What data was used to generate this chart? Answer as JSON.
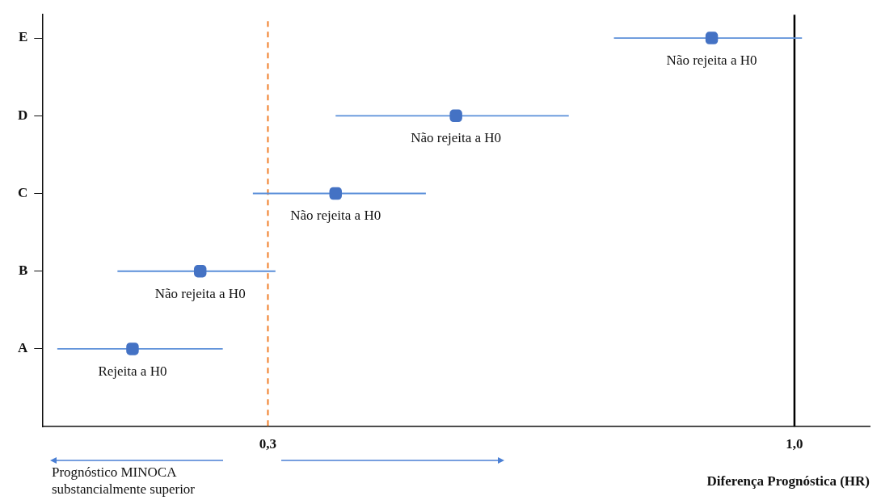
{
  "chart_data": {
    "type": "scatter",
    "orientation": "horizontal",
    "categories": [
      "E",
      "D",
      "C",
      "B",
      "A"
    ],
    "xlabel": "Diferença Prognóstica (HR)",
    "xlim": [
      0,
      1.1
    ],
    "xticks": [
      {
        "value": 0.3,
        "label": "0,3"
      },
      {
        "value": 1.0,
        "label": "1,0"
      }
    ],
    "series": [
      {
        "color": "#4472c4",
        "values": [
          0.89,
          0.55,
          0.39,
          0.21,
          0.12
        ],
        "errors": [
          [
            0.76,
            1.01
          ],
          [
            0.39,
            0.7
          ],
          [
            0.28,
            0.51
          ],
          [
            0.1,
            0.31
          ],
          [
            0.02,
            0.24
          ]
        ]
      }
    ],
    "marker": "square",
    "grid": false,
    "legend": false,
    "ref_lines": [
      {
        "axis": "x",
        "value": 0.3,
        "color": "#f07f2a",
        "line_style": "dashed"
      },
      {
        "axis": "x",
        "value": 1.0,
        "color": "#000000",
        "line_style": "solid"
      }
    ],
    "annotations": [
      {
        "text": "Não rejeita a H0",
        "x": 0.89,
        "y": "E"
      },
      {
        "text": "Não rejeita a H0",
        "x": 0.55,
        "y": "D"
      },
      {
        "text": "Não rejeita a H0",
        "x": 0.39,
        "y": "C"
      },
      {
        "text": "Não rejeita a H0",
        "x": 0.21,
        "y": "B"
      },
      {
        "text": "Rejeita a H0",
        "x": 0.12,
        "y": "A"
      },
      "Prognóstico MINOCA substancialmente superior"
    ]
  }
}
